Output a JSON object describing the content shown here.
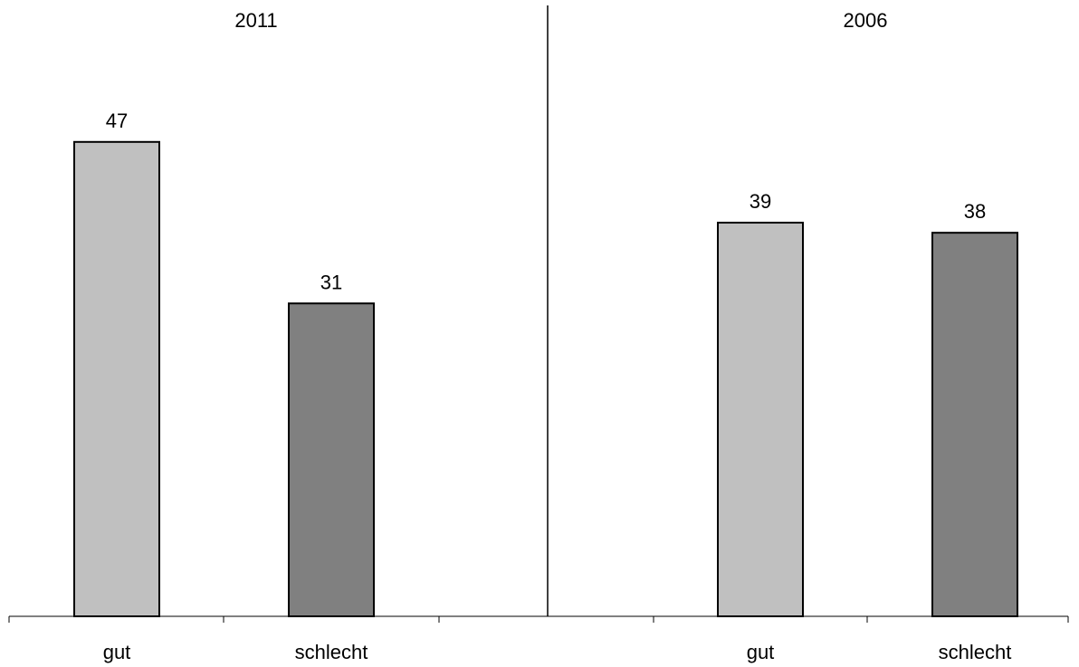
{
  "chart_data": {
    "type": "bar",
    "panels": [
      {
        "title": "2011",
        "categories": [
          "gut",
          "schlecht"
        ],
        "values": [
          47,
          31
        ],
        "colors": [
          "#c0c0c0",
          "#808080"
        ]
      },
      {
        "title": "2006",
        "categories": [
          "gut",
          "schlecht"
        ],
        "values": [
          39,
          38
        ],
        "colors": [
          "#c0c0c0",
          "#808080"
        ]
      }
    ],
    "ylim": [
      0,
      55.5
    ],
    "data_labels": true,
    "grid": false,
    "legend": "none"
  }
}
